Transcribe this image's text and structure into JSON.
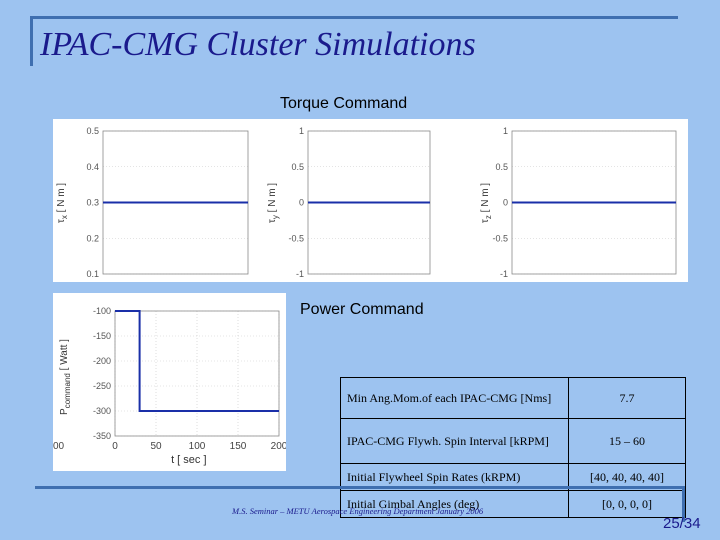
{
  "title": "IPAC-CMG Cluster Simulations",
  "torque_caption": "Torque Command",
  "power_caption": "Power Command",
  "chart_data": [
    {
      "type": "line",
      "ylabel_main": "τ",
      "ylabel_sub": "x",
      "ylabel_unit": "[ N m ]",
      "ylim": [
        0.1,
        0.5
      ],
      "yticks": [
        "0.5",
        "0.4",
        "0.3",
        "0.2",
        "0.1"
      ],
      "series": [
        {
          "values": [
            0.3,
            0.3
          ]
        }
      ],
      "line_color": "#1a2fa8",
      "grid": true
    },
    {
      "type": "line",
      "ylabel_main": "τ",
      "ylabel_sub": "y",
      "ylabel_unit": "[ N m ]",
      "ylim": [
        -1,
        1
      ],
      "yticks": [
        "1",
        "0.5",
        "0",
        "-0.5",
        "-1"
      ],
      "series": [
        {
          "values": [
            0,
            0
          ]
        }
      ],
      "line_color": "#1a2fa8",
      "grid": true
    },
    {
      "type": "line",
      "ylabel_main": "τ",
      "ylabel_sub": "z",
      "ylabel_unit": "[ N m ]",
      "ylim": [
        -1,
        1
      ],
      "yticks": [
        "1",
        "0.5",
        "0",
        "-0.5",
        "-1"
      ],
      "series": [
        {
          "values": [
            0,
            0
          ]
        }
      ],
      "line_color": "#1a2fa8",
      "grid": true
    },
    {
      "type": "line",
      "ylabel_main": "P",
      "ylabel_sub": "command",
      "ylabel_unit": "[ Watt ]",
      "xlabel": "t   [ sec ]",
      "xlim": [
        0,
        200
      ],
      "ylim": [
        -350,
        -100
      ],
      "xticks": [
        "0",
        "50",
        "100",
        "150",
        "200"
      ],
      "yticks": [
        "-100",
        "-150",
        "-200",
        "-250",
        "-300",
        "-350"
      ],
      "left_edge_label": "00",
      "series": [
        {
          "x": [
            0,
            30,
            30,
            200
          ],
          "y": [
            -100,
            -100,
            -300,
            -300
          ]
        }
      ],
      "line_color": "#1a2fa8",
      "grid": true
    }
  ],
  "params_table": [
    {
      "label": "Min Ang.Mom.of each IPAC-CMG [Nms]",
      "value": "7.7"
    },
    {
      "label": "IPAC-CMG Flywh. Spin Interval [kRPM]",
      "value": "15 – 60"
    },
    {
      "label": "Initial Flywheel Spin Rates (kRPM)",
      "value": "[40, 40, 40, 40]"
    },
    {
      "label": "Initial Gimbal Angles (deg)",
      "value": "[0, 0, 0, 0]"
    }
  ],
  "footer": "M.S. Seminar – METU Aerospace Engineering Department January 2006",
  "page_number": "25/34",
  "colors": {
    "background": "#9dc3f0",
    "title": "#1a1a8c",
    "frame": "#3f6fb0",
    "plot_line": "#1a2fa8"
  }
}
